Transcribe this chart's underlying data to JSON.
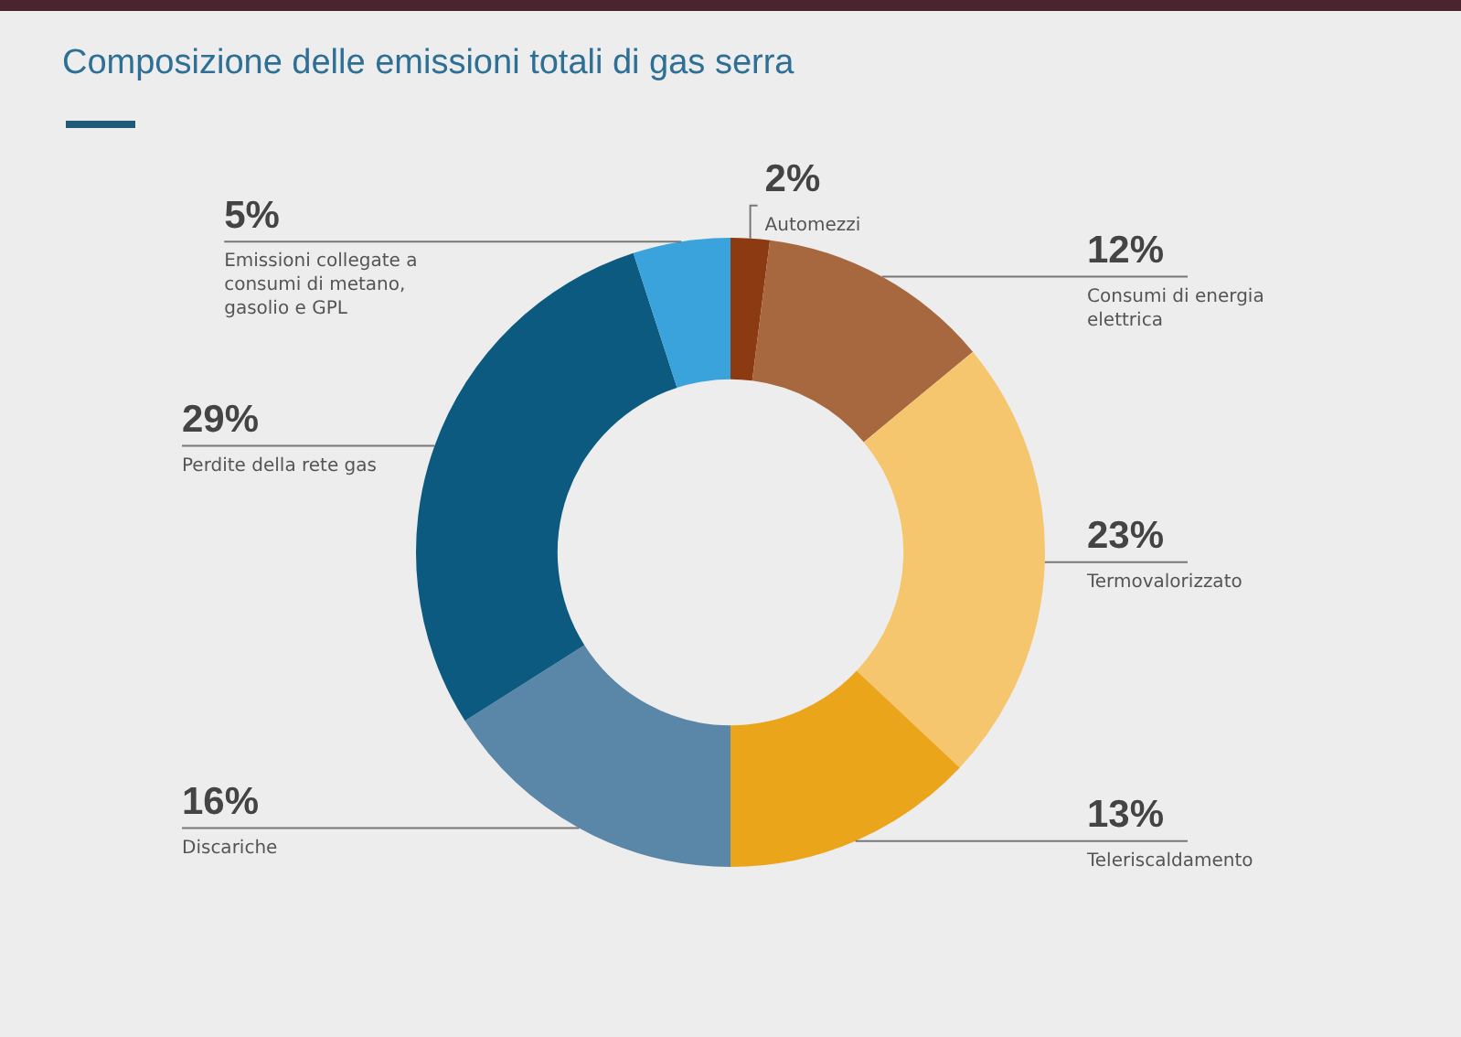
{
  "chart_data": {
    "type": "donut",
    "title": "Composizione delle emissioni totali di gas serra",
    "categories": [
      "Automezzi",
      "Consumi di energia elettrica",
      "Termovalorizzato",
      "Teleriscaldamento",
      "Discariche",
      "Perdite della rete gas",
      "Emissioni collegate a consumi di metano, gasolio e GPL"
    ],
    "values": [
      2,
      12,
      23,
      13,
      16,
      29,
      5
    ],
    "value_labels": [
      "2%",
      "12%",
      "23%",
      "13%",
      "16%",
      "29%",
      "5%"
    ],
    "colors": [
      "#8b3a12",
      "#a8683f",
      "#f6c66e",
      "#eba51b",
      "#5a86a8",
      "#0c5a80",
      "#3aa3dc"
    ],
    "legend": false
  }
}
